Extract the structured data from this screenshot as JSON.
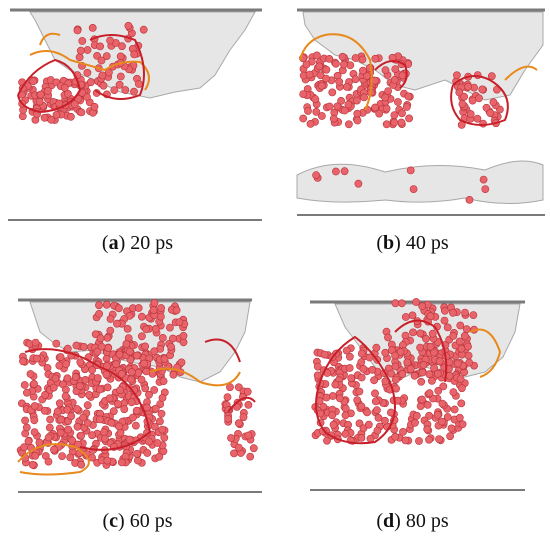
{
  "figure": {
    "panels": [
      {
        "letter": "a",
        "label": "20 ps"
      },
      {
        "letter": "b",
        "label": "40 ps"
      },
      {
        "letter": "c",
        "label": "60 ps"
      },
      {
        "letter": "d",
        "label": "80 ps"
      }
    ],
    "colors": {
      "surface": "#e6e6e6",
      "surface_edge": "#9a9a9a",
      "atom": "#e8646a",
      "atom_edge": "#b8333a",
      "dislocation_red": "#c8202a",
      "dislocation_orange": "#e8891c",
      "baseline": "#7a7a7a"
    }
  }
}
